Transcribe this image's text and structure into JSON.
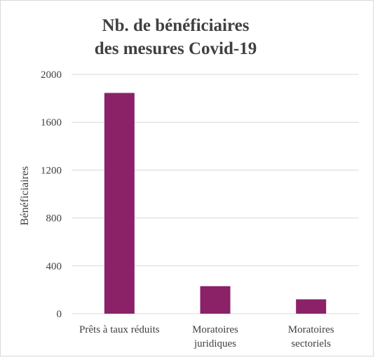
{
  "chart_data": {
    "type": "bar",
    "title_lines": [
      "Nb. de bénéficiaires",
      "des mesures Covid-19"
    ],
    "xlabel": "",
    "ylabel": "Bénéficiaires",
    "categories": [
      [
        "Prêts à taux réduits"
      ],
      [
        "Moratoires",
        "juridiques"
      ],
      [
        "Moratoires",
        "sectoriels"
      ]
    ],
    "values": [
      1845,
      230,
      120
    ],
    "ylim": [
      0,
      2000
    ],
    "yticks": [
      0,
      400,
      800,
      1200,
      1600,
      2000
    ],
    "grid": true,
    "legend": "none",
    "bar_color": "#8b2268",
    "grid_color": "#d9d9d9",
    "text_color": "#404040"
  }
}
